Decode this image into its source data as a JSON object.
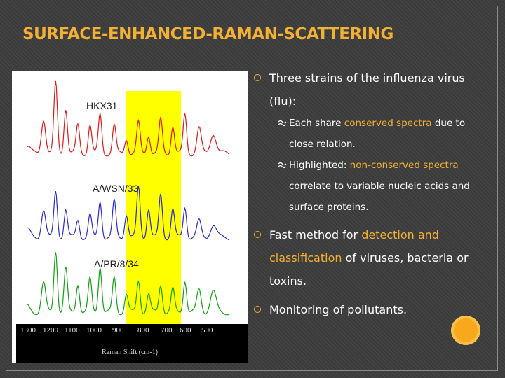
{
  "title": "SURFACE-ENHANCED-RAMAN-SCATTERING",
  "figure": {
    "spectra": [
      {
        "label": "HKX31",
        "color": "#e01818"
      },
      {
        "label": "A/WSN/33",
        "color": "#2a2ad0"
      },
      {
        "label": "A/PR/8/34",
        "color": "#14a014"
      }
    ],
    "highlight_color": "#ffff00",
    "axis_ticks": [
      "1300",
      "1200",
      "1100",
      "1000",
      "900",
      "800",
      "700",
      "600",
      "500"
    ],
    "axis_title": "Raman Shift (cm-1)"
  },
  "bullets": [
    {
      "parts": [
        "Three strains of the influenza virus (flu):"
      ],
      "sub": [
        {
          "before": "Each share ",
          "accent": "conserved spectra",
          "after": " due to close relation."
        },
        {
          "before": "Highlighted: ",
          "accent": "non-conserved spectra",
          "after": " correlate to variable nucleic acids and surface proteins."
        }
      ]
    },
    {
      "before": "Fast method for ",
      "accent": "detection and classification",
      "after": " of viruses, bacteria or toxins."
    },
    {
      "text": "Monitoring of pollutants."
    }
  ],
  "colors": {
    "accent": "#f2b134",
    "background": "#3c3c3c",
    "orb": "#f7a81b"
  }
}
